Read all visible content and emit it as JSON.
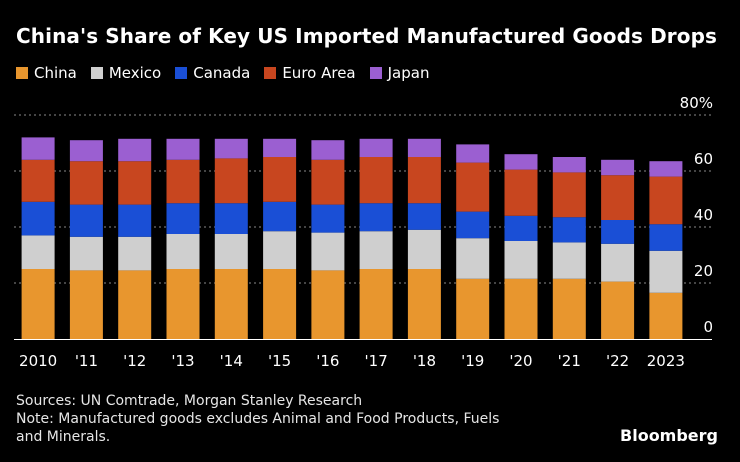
{
  "chart_data": {
    "type": "stacked-bar",
    "title": "China's Share of Key US Imported Manufactured Goods Drops",
    "categories": [
      "2010",
      "'11",
      "'12",
      "'13",
      "'14",
      "'15",
      "'16",
      "'17",
      "'18",
      "'19",
      "'20",
      "'21",
      "'22",
      "2023"
    ],
    "series": [
      {
        "name": "China",
        "color": "#e8962e",
        "values": [
          25,
          24.5,
          24.5,
          25,
          25,
          25,
          24.5,
          25,
          25,
          21.5,
          21.5,
          21.5,
          20.5,
          16.5
        ]
      },
      {
        "name": "Mexico",
        "color": "#cfcfcf",
        "values": [
          12,
          12,
          12,
          12.5,
          12.5,
          13.5,
          13.5,
          13.5,
          14,
          14.5,
          13.5,
          13,
          13.5,
          15
        ]
      },
      {
        "name": "Canada",
        "color": "#1a4fd6",
        "values": [
          12,
          11.5,
          11.5,
          11,
          11,
          10.5,
          10,
          10,
          9.5,
          9.5,
          9,
          9,
          8.5,
          9.5
        ]
      },
      {
        "name": "Euro Area",
        "color": "#c8461f",
        "values": [
          15,
          15.5,
          15.5,
          15.5,
          16,
          16,
          16,
          16.5,
          16.5,
          17.5,
          16.5,
          16,
          16,
          17
        ]
      },
      {
        "name": "Japan",
        "color": "#9b5fd1",
        "values": [
          8,
          7.5,
          8,
          7.5,
          7,
          6.5,
          7,
          6.5,
          6.5,
          6.5,
          5.5,
          5.5,
          5.5,
          5.5
        ]
      }
    ],
    "ylim": [
      0,
      80
    ],
    "yticks": [
      {
        "value": 0,
        "label": "0"
      },
      {
        "value": 20,
        "label": "20"
      },
      {
        "value": 40,
        "label": "40"
      },
      {
        "value": 60,
        "label": "60"
      },
      {
        "value": 80,
        "label": "80%"
      }
    ],
    "grid": true
  },
  "legend": {
    "items": [
      {
        "label": "China",
        "color": "#e8962e"
      },
      {
        "label": "Mexico",
        "color": "#cfcfcf"
      },
      {
        "label": "Canada",
        "color": "#1a4fd6"
      },
      {
        "label": "Euro Area",
        "color": "#c8461f"
      },
      {
        "label": "Japan",
        "color": "#9b5fd1"
      }
    ]
  },
  "footer": {
    "sources": "Sources: UN Comtrade, Morgan Stanley Research",
    "note_line1": "Note: Manufactured goods excludes Animal and Food Products, Fuels",
    "note_line2": "and Minerals."
  },
  "brand": "Bloomberg"
}
